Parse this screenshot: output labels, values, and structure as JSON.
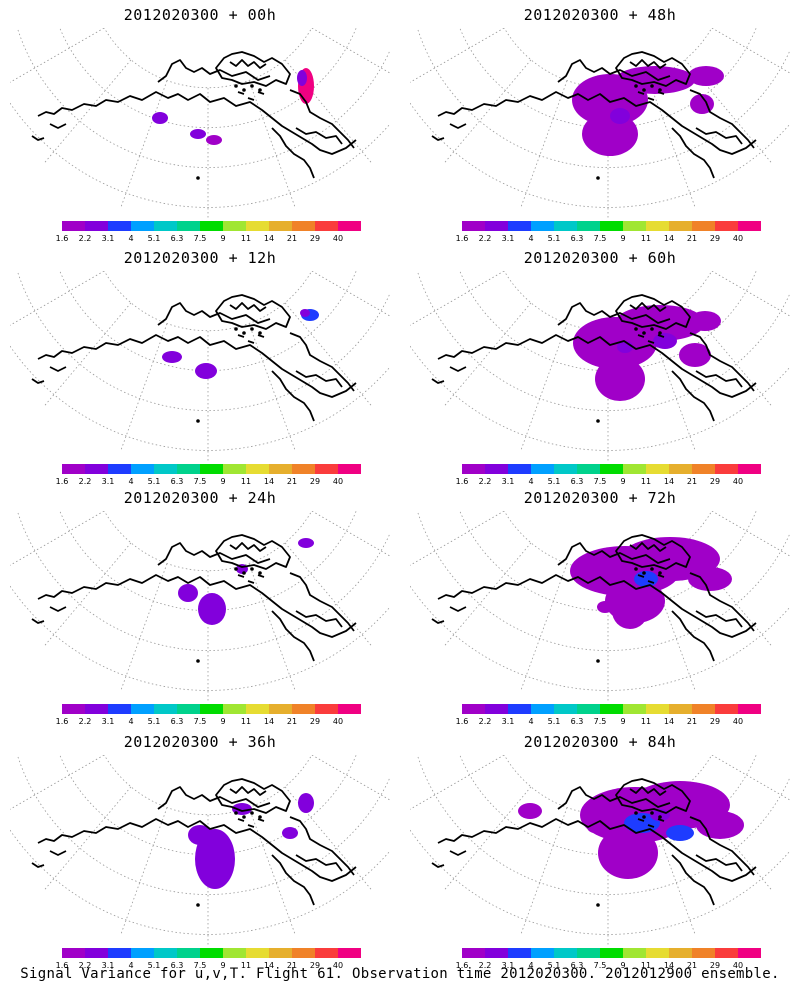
{
  "figure": {
    "caption": "Signal Variance for u,v,T. Flight 61. Observation time 2012020300. 2012012900 ensemble."
  },
  "colorbar": {
    "levels": [
      "1.6",
      "2.2",
      "3.1",
      "4",
      "5.1",
      "6.3",
      "7.5",
      "9",
      "11",
      "14",
      "21",
      "29",
      "40"
    ],
    "colors": [
      "#a000c8",
      "#8200dc",
      "#1e3cff",
      "#00a0ff",
      "#00c8c8",
      "#00d28c",
      "#00dc00",
      "#a0e632",
      "#e6dc32",
      "#e6af2d",
      "#f08228",
      "#fa3c3c",
      "#f00082"
    ]
  },
  "chart_data": [
    {
      "type": "heatmap",
      "title": "2012020300 + 00h",
      "lead_hours": 0,
      "max_level_reached": "40",
      "coverage": "small"
    },
    {
      "type": "heatmap",
      "title": "2012020300 + 48h",
      "lead_hours": 48,
      "max_level_reached": "2.2",
      "coverage": "medium"
    },
    {
      "type": "heatmap",
      "title": "2012020300 + 12h",
      "lead_hours": 12,
      "max_level_reached": "3.1",
      "coverage": "small"
    },
    {
      "type": "heatmap",
      "title": "2012020300 + 60h",
      "lead_hours": 60,
      "max_level_reached": "2.2",
      "coverage": "large"
    },
    {
      "type": "heatmap",
      "title": "2012020300 + 24h",
      "lead_hours": 24,
      "max_level_reached": "2.2",
      "coverage": "small"
    },
    {
      "type": "heatmap",
      "title": "2012020300 + 72h",
      "lead_hours": 72,
      "max_level_reached": "3.1",
      "coverage": "large"
    },
    {
      "type": "heatmap",
      "title": "2012020300 + 36h",
      "lead_hours": 36,
      "max_level_reached": "2.2",
      "coverage": "medium"
    },
    {
      "type": "heatmap",
      "title": "2012020300 + 84h",
      "lead_hours": 84,
      "max_level_reached": "3.1",
      "coverage": "large"
    }
  ]
}
